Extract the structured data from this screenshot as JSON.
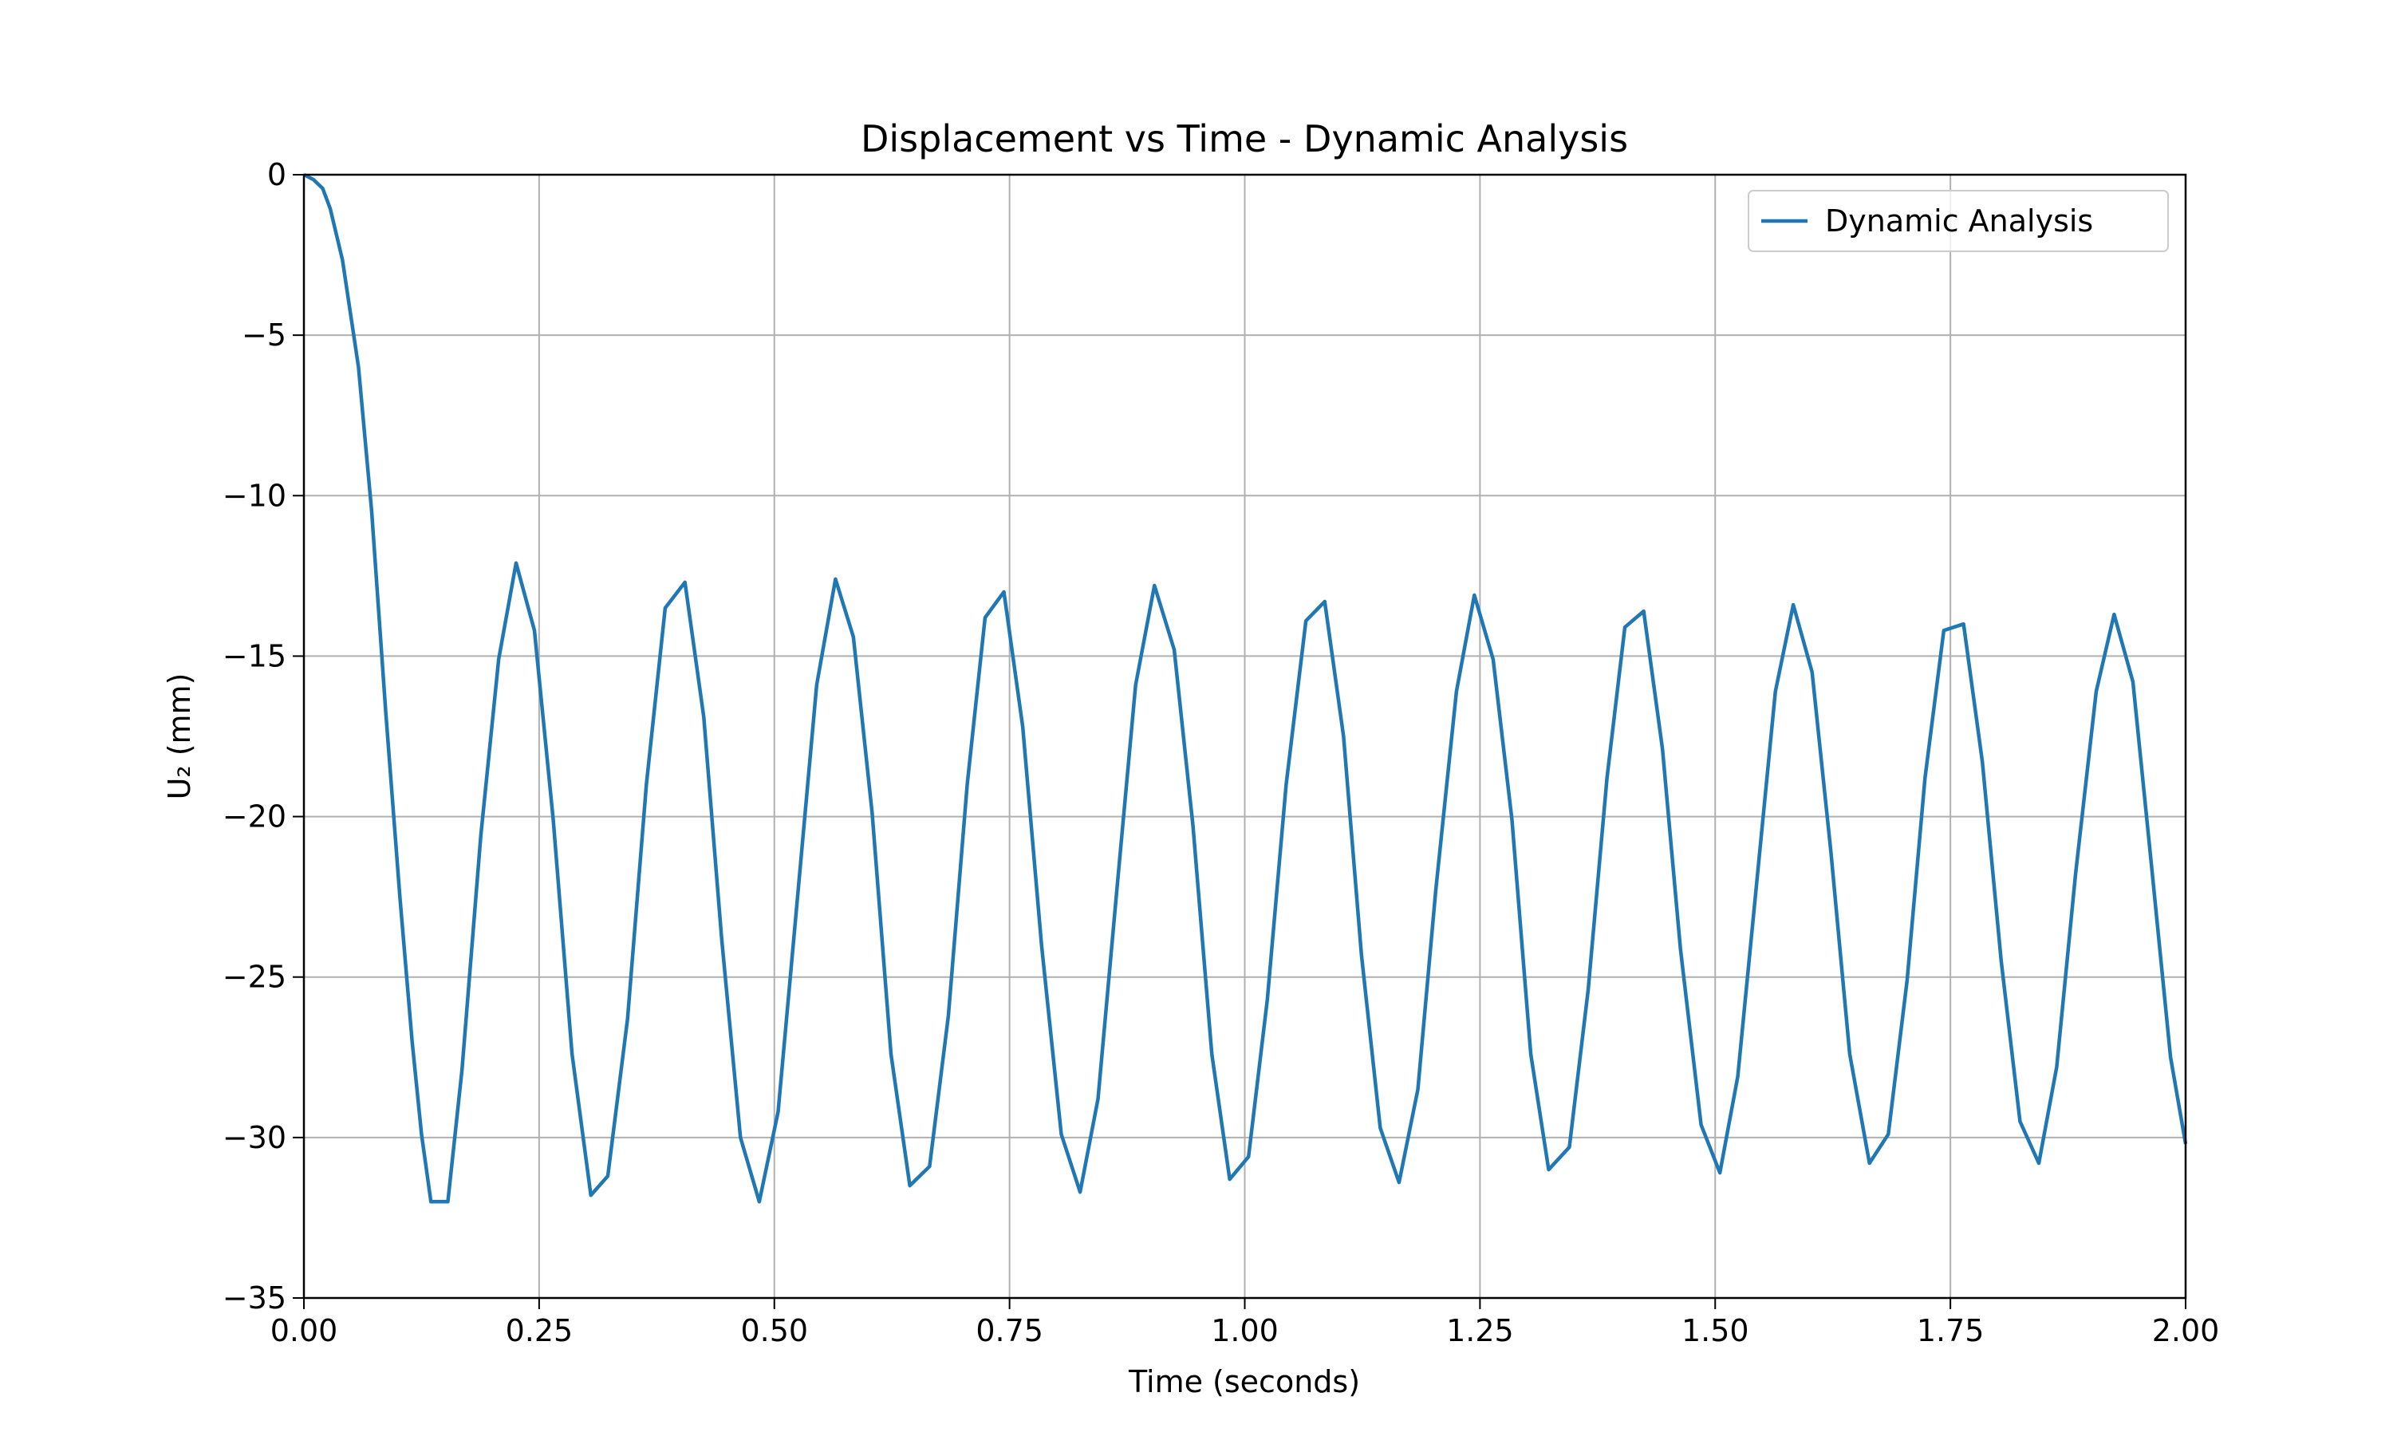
{
  "chart_data": {
    "type": "line",
    "title": "Displacement vs Time - Dynamic Analysis",
    "x_label": "Time (seconds)",
    "y_label": "U₂ (mm)",
    "xlim": [
      0,
      2
    ],
    "ylim": [
      -35,
      0
    ],
    "xticks": [
      {
        "value": 0,
        "label": "0.00"
      },
      {
        "value": 0.25,
        "label": "0.25"
      },
      {
        "value": 0.5,
        "label": "0.50"
      },
      {
        "value": 0.75,
        "label": "0.75"
      },
      {
        "value": 1,
        "label": "1.00"
      },
      {
        "value": 1.25,
        "label": "1.25"
      },
      {
        "value": 1.5,
        "label": "1.50"
      },
      {
        "value": 1.75,
        "label": "1.75"
      },
      {
        "value": 2,
        "label": "2.00"
      }
    ],
    "yticks": [
      {
        "value": -35,
        "label": "−35"
      },
      {
        "value": -30,
        "label": "−30"
      },
      {
        "value": -25,
        "label": "−25"
      },
      {
        "value": -20,
        "label": "−20"
      },
      {
        "value": -15,
        "label": "−15"
      },
      {
        "value": -10,
        "label": "−10"
      },
      {
        "value": -5,
        "label": "−5"
      },
      0
    ],
    "grid": true,
    "legend_position": "upper-right",
    "x": [
      0,
      0.01,
      0.02,
      0.028,
      0.041,
      0.058,
      0.072,
      0.087,
      0.102,
      0.115,
      0.125,
      0.135,
      0.153,
      0.168,
      0.188,
      0.207,
      0.2255,
      0.245,
      0.265,
      0.285,
      0.305,
      0.323,
      0.344,
      0.364,
      0.384,
      0.405,
      0.425,
      0.444,
      0.464,
      0.484,
      0.504,
      0.525,
      0.545,
      0.565,
      0.584,
      0.604,
      0.624,
      0.644,
      0.665,
      0.685,
      0.705,
      0.724,
      0.744,
      0.764,
      0.784,
      0.805,
      0.825,
      0.844,
      0.864,
      0.884,
      0.904,
      0.925,
      0.945,
      0.965,
      0.984,
      1.004,
      1.024,
      1.044,
      1.065,
      1.085,
      1.105,
      1.124,
      1.144,
      1.164,
      1.184,
      1.203,
      1.225,
      1.244,
      1.264,
      1.284,
      1.304,
      1.323,
      1.345,
      1.365,
      1.385,
      1.404,
      1.424,
      1.444,
      1.463,
      1.485,
      1.505,
      1.524,
      1.544,
      1.564,
      1.583,
      1.603,
      1.623,
      1.643,
      1.664,
      1.684,
      1.704,
      1.723,
      1.743,
      1.764,
      1.784,
      1.804,
      1.824,
      1.844,
      1.863,
      1.883,
      1.905,
      1.924,
      1.944,
      1.964,
      1.984,
      2.0
    ],
    "series": [
      {
        "name": "Dynamic Analysis",
        "color": "#1f77b4",
        "values": [
          0,
          -0.15,
          -0.43,
          -1.06,
          -2.66,
          -5.99,
          -10.48,
          -16.75,
          -22.5,
          -27.0,
          -29.9,
          -32.0,
          -32.0,
          -27.9,
          -20.6,
          -15.1,
          -12.1,
          -14.2,
          -20.1,
          -27.4,
          -31.8,
          -31.2,
          -26.3,
          -19.0,
          -13.5,
          -12.7,
          -16.9,
          -23.8,
          -30.0,
          -32.0,
          -29.2,
          -22.4,
          -15.9,
          -12.6,
          -14.4,
          -19.9,
          -27.4,
          -31.5,
          -30.9,
          -26.2,
          -19.0,
          -13.8,
          -13.0,
          -17.2,
          -24.0,
          -29.9,
          -31.7,
          -28.8,
          -22.3,
          -15.9,
          -12.8,
          -14.8,
          -20.3,
          -27.4,
          -31.3,
          -30.6,
          -25.7,
          -19.0,
          -13.9,
          -13.3,
          -17.5,
          -24.3,
          -29.7,
          -31.4,
          -28.5,
          -22.3,
          -16.1,
          -13.1,
          -15.1,
          -20.1,
          -27.4,
          -31.0,
          -30.3,
          -25.4,
          -18.8,
          -14.1,
          -13.6,
          -17.9,
          -24.1,
          -29.6,
          -31.1,
          -28.1,
          -22.1,
          -16.1,
          -13.4,
          -15.5,
          -21.1,
          -27.4,
          -30.8,
          -29.9,
          -25.1,
          -18.8,
          -14.2,
          -14.0,
          -18.3,
          -24.5,
          -29.5,
          -30.8,
          -27.8,
          -21.8,
          -16.1,
          -13.7,
          -15.8,
          -21.6,
          -27.5,
          -30.2
        ]
      }
    ]
  }
}
